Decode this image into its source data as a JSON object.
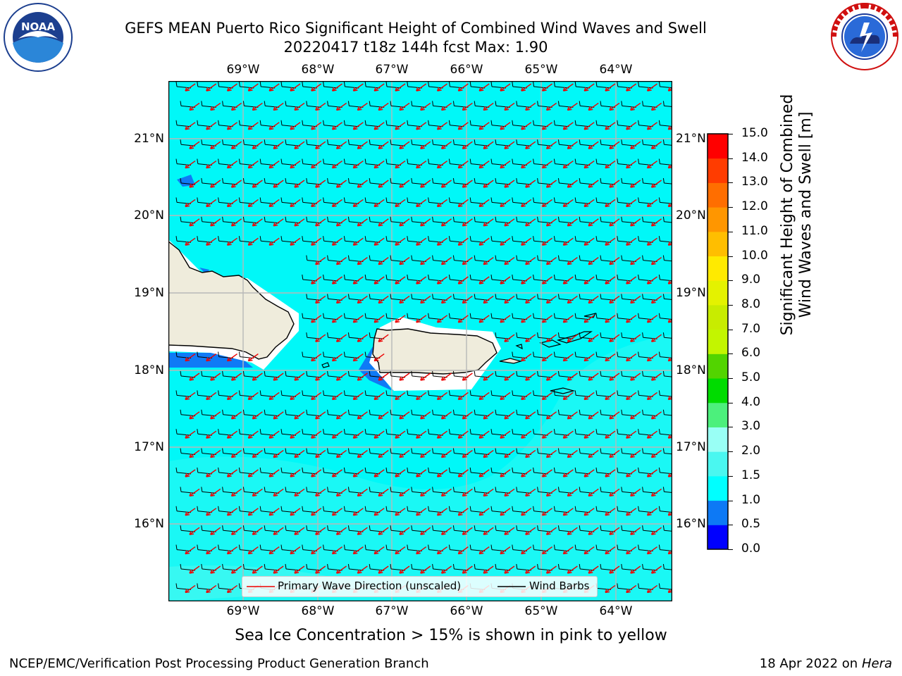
{
  "header": {
    "title_line1": "GEFS MEAN Puerto Rico Significant Height of Combined Wind Waves and Swell",
    "title_line2": "20220417 t18z 144h fcst   Max: 1.90"
  },
  "logos": {
    "left": {
      "name": "noaa-logo",
      "text": "NOAA",
      "ring_text": "NATIONAL OCEANIC AND ATMOSPHERIC ADMINISTRATION · U.S. DEPARTMENT OF COMMERCE"
    },
    "right": {
      "name": "nws-logo",
      "ring_text": "NATIONAL WEATHER SERVICE"
    }
  },
  "map": {
    "lon_labels": [
      "69°W",
      "68°W",
      "67°W",
      "66°W",
      "65°W",
      "64°W"
    ],
    "lat_labels": [
      "21°N",
      "20°N",
      "19°N",
      "18°N",
      "17°N",
      "16°N"
    ],
    "colors": {
      "sea": "#00f8f8",
      "sea_light": "#4bf8f0",
      "land": "#efecdc",
      "shallow_blue": "#0f7af6",
      "grid": "#b8b8b8",
      "barb": "#000000",
      "wave_arrow": "#ee0000"
    }
  },
  "legend": {
    "wave_label": "Primary Wave Direction (unscaled)",
    "barb_label": "Wind Barbs"
  },
  "colorbar": {
    "title_line1": "Significant Height of Combined",
    "title_line2": "Wind Waves and Swell [m]",
    "ticks": [
      "15.0",
      "14.0",
      "13.0",
      "12.0",
      "11.0",
      "10.0",
      "9.0",
      "8.0",
      "7.0",
      "6.0",
      "5.0",
      "4.0",
      "3.0",
      "2.0",
      "1.5",
      "1.0",
      "0.5",
      "0.0"
    ],
    "bins": [
      {
        "from": 0.0,
        "to": 0.5,
        "color": "#0000ff"
      },
      {
        "from": 0.5,
        "to": 1.0,
        "color": "#0d79f5"
      },
      {
        "from": 1.0,
        "to": 1.5,
        "color": "#00ffff"
      },
      {
        "from": 1.5,
        "to": 2.0,
        "color": "#4af7f0"
      },
      {
        "from": 2.0,
        "to": 3.0,
        "color": "#99fff5"
      },
      {
        "from": 3.0,
        "to": 4.0,
        "color": "#4cf07c"
      },
      {
        "from": 4.0,
        "to": 5.0,
        "color": "#00dc00"
      },
      {
        "from": 5.0,
        "to": 6.0,
        "color": "#52d400"
      },
      {
        "from": 6.0,
        "to": 7.0,
        "color": "#c3f500"
      },
      {
        "from": 7.0,
        "to": 8.0,
        "color": "#c8ec00"
      },
      {
        "from": 8.0,
        "to": 9.0,
        "color": "#e4f200"
      },
      {
        "from": 9.0,
        "to": 10.0,
        "color": "#ffea00"
      },
      {
        "from": 10.0,
        "to": 11.0,
        "color": "#ffbe00"
      },
      {
        "from": 11.0,
        "to": 12.0,
        "color": "#ff9600"
      },
      {
        "from": 12.0,
        "to": 13.0,
        "color": "#ff6e00"
      },
      {
        "from": 13.0,
        "to": 14.0,
        "color": "#ff3c00"
      },
      {
        "from": 14.0,
        "to": 15.0,
        "color": "#ff0000"
      }
    ]
  },
  "note": "Sea Ice Concentration > 15% is shown in pink to yellow",
  "footer": {
    "left": "NCEP/EMC/Verification Post Processing Product Generation Branch",
    "right_prefix": "18 Apr 2022 on ",
    "right_machine": "Hera"
  }
}
